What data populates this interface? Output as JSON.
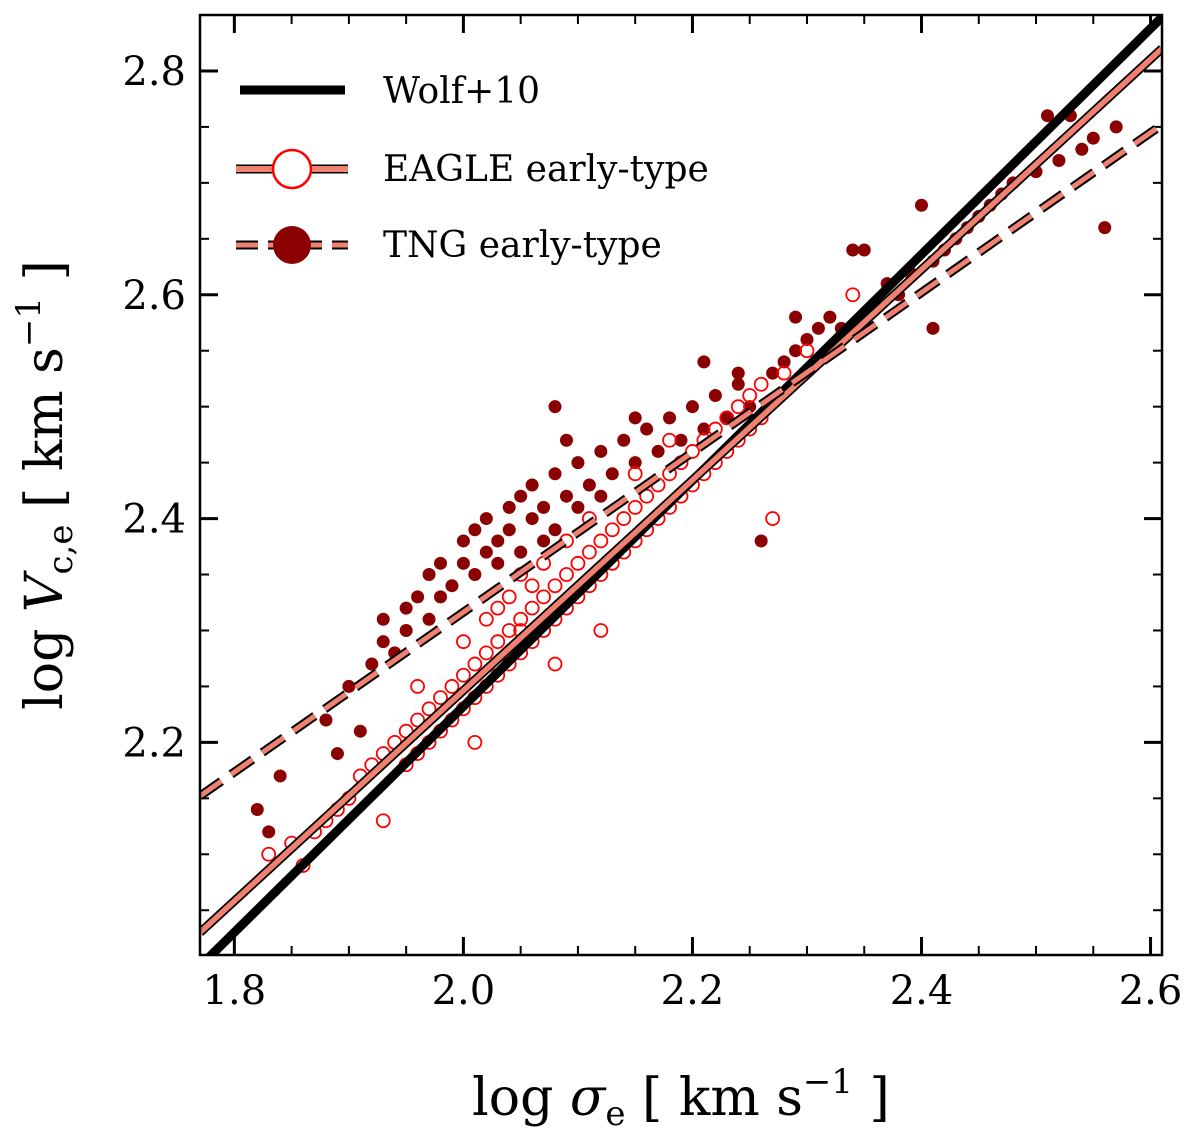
{
  "chart_data": {
    "type": "scatter",
    "title": "",
    "xlabel": "log σe [ km s−1 ]",
    "ylabel": "log Vc,e [ km s−1 ]",
    "xlabel_parts": {
      "prefix": "log ",
      "symbol": "σ",
      "sub": "e",
      "unit": " [ km s",
      "exp": "−1",
      "close": " ]"
    },
    "ylabel_parts": {
      "prefix": "log ",
      "symbol": "V",
      "sub": "c,e",
      "unit": " [ km s",
      "exp": "−1",
      "close": " ]"
    },
    "xlim": [
      1.77,
      2.61
    ],
    "ylim": [
      2.01,
      2.85
    ],
    "xticks": [
      1.8,
      2.0,
      2.2,
      2.4,
      2.6
    ],
    "xtick_labels": [
      "1.8",
      "2.0",
      "2.2",
      "2.4",
      "2.6"
    ],
    "yticks": [
      2.2,
      2.4,
      2.6,
      2.8
    ],
    "ytick_labels": [
      "2.2",
      "2.4",
      "2.6",
      "2.8"
    ],
    "legend_position": "top-left",
    "legend": [
      {
        "label": "Wolf+10",
        "style": "thick-black-line"
      },
      {
        "label": "EAGLE early-type",
        "style": "salmon-line-open-circle"
      },
      {
        "label": "TNG early-type",
        "style": "salmon-dashed-filled-circle"
      }
    ],
    "colors": {
      "wolf": "#000000",
      "fit": "#f08070",
      "eagle": "#ff0000",
      "tng": "#8b0000"
    },
    "lines": [
      {
        "name": "Wolf+10",
        "x": [
          1.77,
          2.61
        ],
        "y": [
          2.0,
          2.848
        ]
      },
      {
        "name": "EAGLE early-type fit",
        "x": [
          1.77,
          2.61
        ],
        "y": [
          2.03,
          2.82
        ]
      },
      {
        "name": "TNG early-type fit",
        "x": [
          1.77,
          2.61
        ],
        "y": [
          2.152,
          2.752
        ]
      }
    ],
    "series": [
      {
        "name": "EAGLE early-type",
        "marker": "open-circle",
        "points": [
          [
            1.83,
            2.1
          ],
          [
            1.85,
            2.11
          ],
          [
            1.86,
            2.09
          ],
          [
            1.87,
            2.12
          ],
          [
            1.88,
            2.13
          ],
          [
            1.89,
            2.14
          ],
          [
            1.9,
            2.15
          ],
          [
            1.91,
            2.17
          ],
          [
            1.92,
            2.18
          ],
          [
            1.93,
            2.19
          ],
          [
            1.93,
            2.13
          ],
          [
            1.94,
            2.2
          ],
          [
            1.95,
            2.21
          ],
          [
            1.95,
            2.18
          ],
          [
            1.96,
            2.22
          ],
          [
            1.96,
            2.19
          ],
          [
            1.97,
            2.23
          ],
          [
            1.97,
            2.2
          ],
          [
            1.98,
            2.24
          ],
          [
            1.98,
            2.21
          ],
          [
            1.99,
            2.25
          ],
          [
            1.99,
            2.22
          ],
          [
            2.0,
            2.26
          ],
          [
            2.0,
            2.23
          ],
          [
            2.0,
            2.29
          ],
          [
            2.01,
            2.27
          ],
          [
            2.01,
            2.24
          ],
          [
            2.02,
            2.28
          ],
          [
            2.02,
            2.25
          ],
          [
            2.02,
            2.31
          ],
          [
            2.03,
            2.29
          ],
          [
            2.03,
            2.26
          ],
          [
            2.04,
            2.3
          ],
          [
            2.04,
            2.27
          ],
          [
            2.04,
            2.33
          ],
          [
            2.05,
            2.31
          ],
          [
            2.05,
            2.28
          ],
          [
            2.05,
            2.35
          ],
          [
            2.06,
            2.32
          ],
          [
            2.06,
            2.29
          ],
          [
            2.07,
            2.33
          ],
          [
            2.07,
            2.3
          ],
          [
            2.07,
            2.36
          ],
          [
            2.08,
            2.34
          ],
          [
            2.08,
            2.31
          ],
          [
            2.09,
            2.35
          ],
          [
            2.09,
            2.32
          ],
          [
            2.09,
            2.38
          ],
          [
            2.1,
            2.36
          ],
          [
            2.1,
            2.33
          ],
          [
            2.11,
            2.37
          ],
          [
            2.11,
            2.34
          ],
          [
            2.11,
            2.4
          ],
          [
            2.12,
            2.38
          ],
          [
            2.12,
            2.35
          ],
          [
            2.13,
            2.39
          ],
          [
            2.13,
            2.36
          ],
          [
            2.14,
            2.4
          ],
          [
            2.14,
            2.37
          ],
          [
            2.15,
            2.41
          ],
          [
            2.15,
            2.38
          ],
          [
            2.15,
            2.44
          ],
          [
            2.16,
            2.42
          ],
          [
            2.16,
            2.39
          ],
          [
            2.17,
            2.43
          ],
          [
            2.17,
            2.4
          ],
          [
            2.18,
            2.44
          ],
          [
            2.18,
            2.41
          ],
          [
            2.18,
            2.47
          ],
          [
            2.19,
            2.45
          ],
          [
            2.19,
            2.42
          ],
          [
            2.2,
            2.46
          ],
          [
            2.2,
            2.43
          ],
          [
            2.21,
            2.47
          ],
          [
            2.21,
            2.44
          ],
          [
            2.22,
            2.48
          ],
          [
            2.22,
            2.45
          ],
          [
            2.23,
            2.49
          ],
          [
            2.23,
            2.46
          ],
          [
            2.24,
            2.5
          ],
          [
            2.24,
            2.47
          ],
          [
            2.25,
            2.51
          ],
          [
            2.25,
            2.48
          ],
          [
            2.26,
            2.52
          ],
          [
            2.26,
            2.49
          ],
          [
            2.27,
            2.4
          ],
          [
            2.28,
            2.53
          ],
          [
            2.3,
            2.55
          ],
          [
            2.34,
            2.6
          ],
          [
            2.05,
            2.3
          ],
          [
            2.03,
            2.32
          ],
          [
            2.06,
            2.34
          ],
          [
            2.08,
            2.27
          ],
          [
            2.12,
            2.3
          ],
          [
            2.01,
            2.2
          ],
          [
            1.96,
            2.25
          ]
        ]
      },
      {
        "name": "TNG early-type",
        "marker": "filled-circle",
        "points": [
          [
            1.82,
            2.14
          ],
          [
            1.83,
            2.12
          ],
          [
            1.84,
            2.17
          ],
          [
            1.88,
            2.22
          ],
          [
            1.89,
            2.19
          ],
          [
            1.9,
            2.25
          ],
          [
            1.91,
            2.21
          ],
          [
            1.92,
            2.27
          ],
          [
            1.93,
            2.29
          ],
          [
            1.93,
            2.31
          ],
          [
            1.94,
            2.28
          ],
          [
            1.95,
            2.32
          ],
          [
            1.95,
            2.3
          ],
          [
            1.96,
            2.33
          ],
          [
            1.97,
            2.31
          ],
          [
            1.97,
            2.35
          ],
          [
            1.98,
            2.33
          ],
          [
            1.98,
            2.36
          ],
          [
            1.99,
            2.34
          ],
          [
            2.0,
            2.36
          ],
          [
            2.0,
            2.38
          ],
          [
            2.01,
            2.35
          ],
          [
            2.01,
            2.39
          ],
          [
            2.02,
            2.37
          ],
          [
            2.02,
            2.4
          ],
          [
            2.03,
            2.36
          ],
          [
            2.03,
            2.38
          ],
          [
            2.04,
            2.41
          ],
          [
            2.04,
            2.39
          ],
          [
            2.05,
            2.37
          ],
          [
            2.05,
            2.42
          ],
          [
            2.06,
            2.4
          ],
          [
            2.06,
            2.43
          ],
          [
            2.07,
            2.38
          ],
          [
            2.07,
            2.41
          ],
          [
            2.08,
            2.44
          ],
          [
            2.08,
            2.39
          ],
          [
            2.09,
            2.42
          ],
          [
            2.1,
            2.45
          ],
          [
            2.1,
            2.41
          ],
          [
            2.11,
            2.43
          ],
          [
            2.12,
            2.46
          ],
          [
            2.12,
            2.42
          ],
          [
            2.13,
            2.44
          ],
          [
            2.14,
            2.47
          ],
          [
            2.15,
            2.45
          ],
          [
            2.16,
            2.48
          ],
          [
            2.17,
            2.46
          ],
          [
            2.18,
            2.49
          ],
          [
            2.19,
            2.47
          ],
          [
            2.2,
            2.5
          ],
          [
            2.21,
            2.48
          ],
          [
            2.22,
            2.51
          ],
          [
            2.23,
            2.49
          ],
          [
            2.24,
            2.52
          ],
          [
            2.25,
            2.5
          ],
          [
            2.26,
            2.38
          ],
          [
            2.27,
            2.53
          ],
          [
            2.28,
            2.54
          ],
          [
            2.29,
            2.55
          ],
          [
            2.3,
            2.56
          ],
          [
            2.31,
            2.57
          ],
          [
            2.32,
            2.58
          ],
          [
            2.33,
            2.57
          ],
          [
            2.34,
            2.64
          ],
          [
            2.35,
            2.64
          ],
          [
            2.36,
            2.59
          ],
          [
            2.37,
            2.61
          ],
          [
            2.38,
            2.6
          ],
          [
            2.39,
            2.62
          ],
          [
            2.4,
            2.68
          ],
          [
            2.41,
            2.63
          ],
          [
            2.41,
            2.57
          ],
          [
            2.42,
            2.64
          ],
          [
            2.43,
            2.65
          ],
          [
            2.44,
            2.66
          ],
          [
            2.45,
            2.67
          ],
          [
            2.46,
            2.68
          ],
          [
            2.47,
            2.69
          ],
          [
            2.48,
            2.7
          ],
          [
            2.5,
            2.71
          ],
          [
            2.51,
            2.76
          ],
          [
            2.52,
            2.72
          ],
          [
            2.53,
            2.76
          ],
          [
            2.54,
            2.73
          ],
          [
            2.55,
            2.74
          ],
          [
            2.56,
            2.66
          ],
          [
            2.57,
            2.75
          ],
          [
            2.08,
            2.5
          ],
          [
            2.09,
            2.47
          ],
          [
            2.15,
            2.49
          ],
          [
            2.21,
            2.54
          ],
          [
            2.24,
            2.53
          ],
          [
            2.29,
            2.58
          ],
          [
            2.32,
            2.55
          ]
        ]
      }
    ]
  }
}
